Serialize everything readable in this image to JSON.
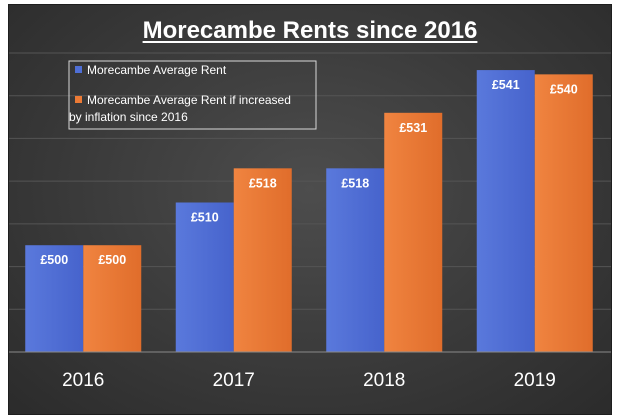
{
  "chart_data": {
    "type": "bar",
    "title": "Morecambe Rents since 2016",
    "categories": [
      "2016",
      "2017",
      "2018",
      "2019"
    ],
    "series": [
      {
        "name": "Morecambe Average Rent",
        "values": [
          500,
          510,
          518,
          541
        ],
        "labels": [
          "£500",
          "£510",
          "£518",
          "£541"
        ],
        "color": "#4f6fd6"
      },
      {
        "name": "Morecambe Average Rent if increased by inflation since 2016",
        "name_lines": [
          "Morecambe Average Rent if increased",
          "by inflation since 2016"
        ],
        "values": [
          500,
          518,
          531,
          540
        ],
        "labels": [
          "£500",
          "£518",
          "£531",
          "£540"
        ],
        "color": "#ec7a35"
      }
    ],
    "ylim": [
      475,
      545
    ],
    "grid": true,
    "legend_position": "top-left",
    "background_color": "#3c3c3c"
  }
}
